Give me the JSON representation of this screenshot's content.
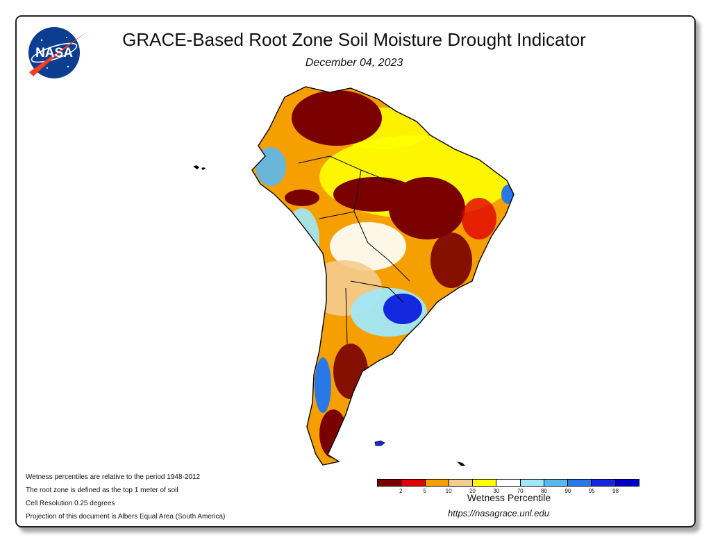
{
  "header": {
    "logo_text": "NASA",
    "title": "GRACE-Based Root Zone Soil Moisture Drought Indicator",
    "date": "December 04, 2023"
  },
  "map": {
    "region": "South America",
    "colors": {
      "dry_extreme": "#7a0000",
      "dry_strong": "#e00000",
      "dry_moderate": "#f5a000",
      "dry_abnormal": "#f5cc90",
      "dry_slight": "#ffff00",
      "normal": "#ffffff",
      "wet_slight": "#a0e8f8",
      "wet_moderate": "#5ab8f0",
      "wet_strong": "#2878e8",
      "wet_very": "#1428e0",
      "wet_extreme": "#0000c8"
    }
  },
  "notes": [
    "Wetness percentiles are relative to the period 1948-2012",
    "The root zone is defined as the top 1 meter of soil",
    "Cell Resolution 0.25 degrees",
    "Projection of this document is Albers Equal Area (South America)"
  ],
  "legend": {
    "title": "Wetness Percentile",
    "swatch_colors": [
      "#7a0000",
      "#e00000",
      "#f5a000",
      "#f5cc90",
      "#ffff00",
      "#ffffff",
      "#a0e8f8",
      "#5ab8f0",
      "#2878e8",
      "#1428e0",
      "#0000c8"
    ],
    "tick_labels": [
      "2",
      "5",
      "10",
      "20",
      "30",
      "70",
      "80",
      "90",
      "95",
      "98"
    ]
  },
  "footer": {
    "url": "https://nasagrace.unl.edu"
  }
}
